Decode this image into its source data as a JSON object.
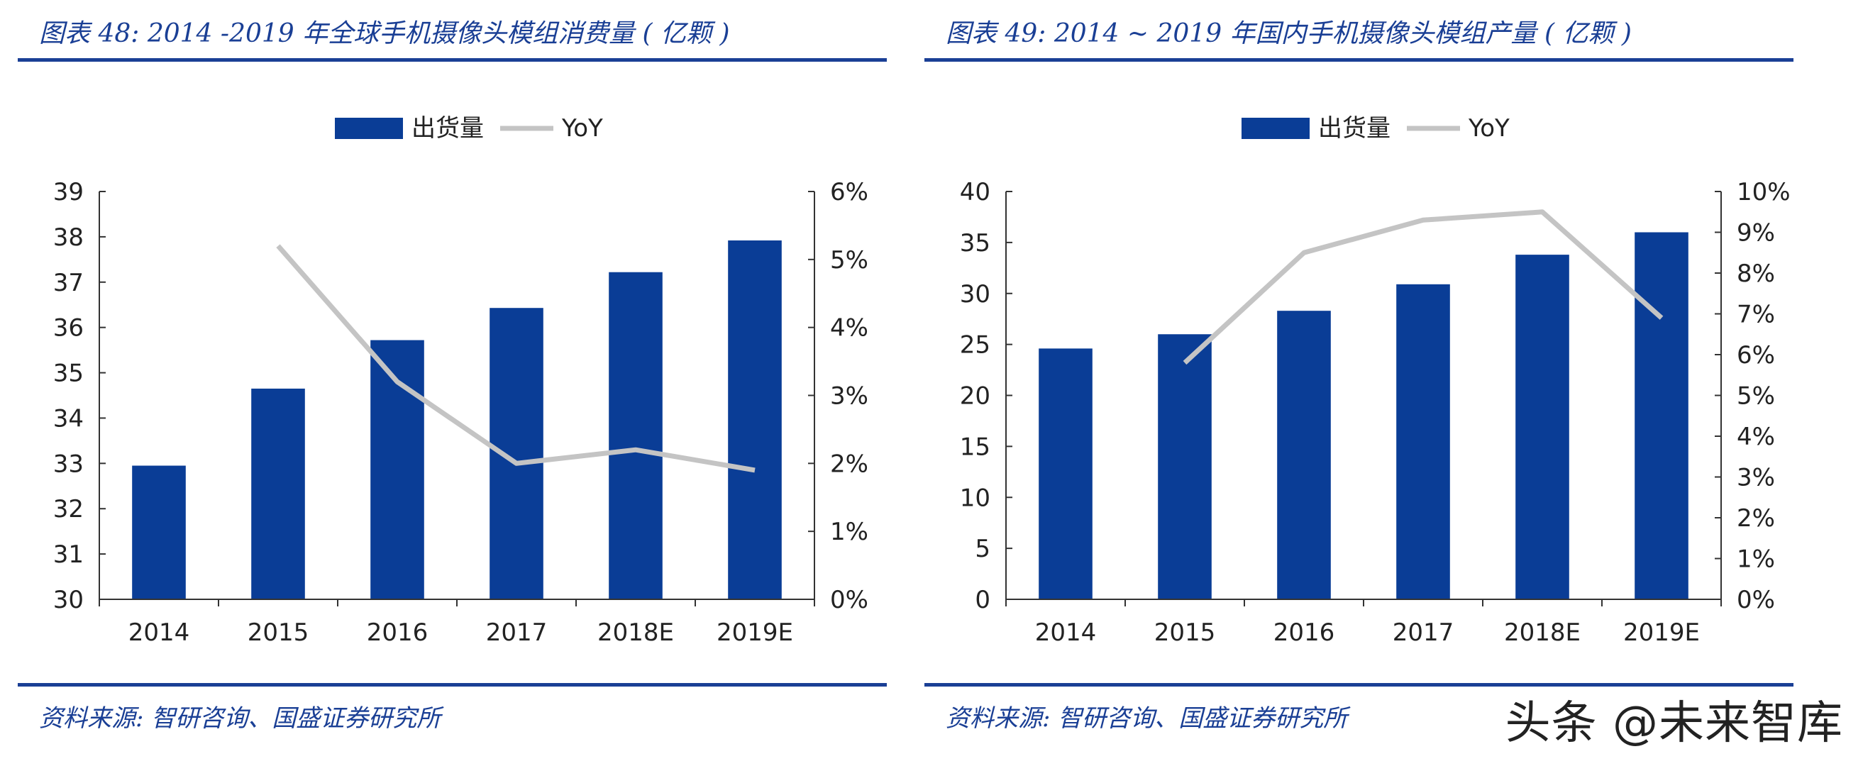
{
  "watermark": "头条 @未来智库",
  "colors": {
    "bar": "#0a3d96",
    "line": "#c4c4c4",
    "accent": "#1a3f95",
    "axis": "#333333"
  },
  "chart_data": [
    {
      "type": "bar",
      "title": "图表 48:  2014 -2019 年全球手机摄像头模组消费量 ( 亿颗 )",
      "source": "资料来源: 智研咨询、国盛证券研究所",
      "categories": [
        "2014",
        "2015",
        "2016",
        "2017",
        "2018E",
        "2019E"
      ],
      "series": [
        {
          "name": "出货量",
          "kind": "bar",
          "axis": "left",
          "values": [
            32.95,
            34.65,
            35.72,
            36.43,
            37.22,
            37.92
          ]
        },
        {
          "name": "YoY",
          "kind": "line",
          "axis": "right",
          "values": [
            null,
            5.2,
            3.2,
            2.0,
            2.2,
            1.9
          ]
        }
      ],
      "ylim": [
        30,
        39
      ],
      "yticks": [
        "30",
        "31",
        "32",
        "33",
        "34",
        "35",
        "36",
        "37",
        "38",
        "39"
      ],
      "y2lim": [
        0,
        6
      ],
      "y2ticks": [
        "0%",
        "1%",
        "2%",
        "3%",
        "4%",
        "5%",
        "6%"
      ],
      "legend": "top-center"
    },
    {
      "type": "bar",
      "title": "图表 49:  2014 ~ 2019 年国内手机摄像头模组产量 ( 亿颗 )",
      "source": "资料来源: 智研咨询、国盛证券研究所",
      "categories": [
        "2014",
        "2015",
        "2016",
        "2017",
        "2018E",
        "2019E"
      ],
      "series": [
        {
          "name": "出货量",
          "kind": "bar",
          "axis": "left",
          "values": [
            24.6,
            26.0,
            28.3,
            30.9,
            33.8,
            36.0
          ]
        },
        {
          "name": "YoY",
          "kind": "line",
          "axis": "right",
          "values": [
            null,
            5.8,
            8.5,
            9.3,
            9.5,
            6.9
          ]
        }
      ],
      "ylim": [
        0,
        40
      ],
      "yticks": [
        "0",
        "5",
        "10",
        "15",
        "20",
        "25",
        "30",
        "35",
        "40"
      ],
      "y2lim": [
        0,
        10
      ],
      "y2ticks": [
        "0%",
        "1%",
        "2%",
        "3%",
        "4%",
        "5%",
        "6%",
        "7%",
        "8%",
        "9%",
        "10%"
      ],
      "legend": "top-center"
    }
  ]
}
